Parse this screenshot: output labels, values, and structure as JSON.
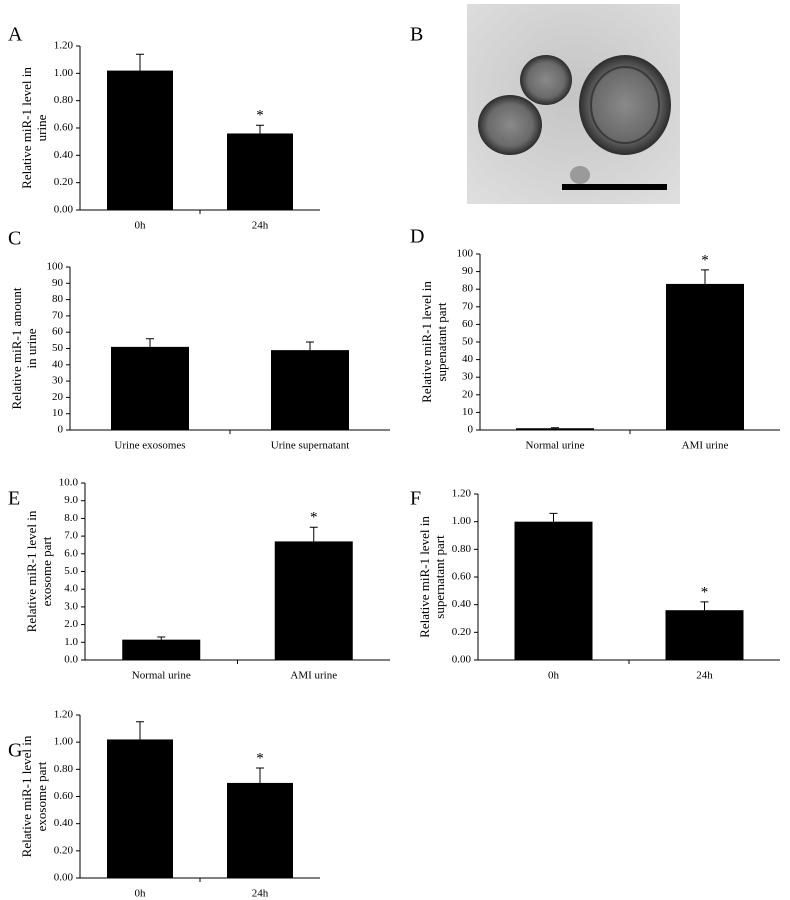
{
  "chart_data": [
    {
      "type": "bar",
      "panel": "A",
      "ylabel": [
        "Relative miR-1 level in",
        "urine"
      ],
      "categories": [
        "0h",
        "24h"
      ],
      "values": [
        1.02,
        0.56
      ],
      "errors": [
        0.12,
        0.06
      ],
      "color": "#000000",
      "annotations": [
        {
          "index": 1,
          "text": "*"
        }
      ],
      "ylim": [
        0,
        1.2
      ],
      "yticks": [
        {
          "value": 0,
          "label": "0.00"
        },
        {
          "value": 0.2,
          "label": "0.20"
        },
        {
          "value": 0.4,
          "label": "0.40"
        },
        {
          "value": 0.6,
          "label": "0.60"
        },
        {
          "value": 0.8,
          "label": "0.80"
        },
        {
          "value": 1,
          "label": "1.00"
        },
        {
          "value": 1.2,
          "label": "1.20"
        }
      ]
    },
    {
      "type": "bar",
      "panel": "C",
      "ylabel": [
        "Relative miR-1 amount",
        "in urine"
      ],
      "categories": [
        "Urine exosomes",
        "Urine supernatant"
      ],
      "values": [
        51,
        49
      ],
      "errors": [
        5,
        5
      ],
      "color": "#000000",
      "annotations": [],
      "ylim": [
        0,
        100
      ],
      "yticks": [
        0,
        10,
        20,
        30,
        40,
        50,
        60,
        70,
        80,
        90,
        100
      ]
    },
    {
      "type": "bar",
      "panel": "D",
      "ylabel": [
        "Relative miR-1 level in",
        "supenatant part"
      ],
      "categories": [
        "Normal urine",
        "AMI urine"
      ],
      "values": [
        1,
        83
      ],
      "errors": [
        0.3,
        8
      ],
      "color": "#000000",
      "annotations": [
        {
          "index": 1,
          "text": "*"
        }
      ],
      "ylim": [
        0,
        100
      ],
      "yticks": [
        0,
        10,
        20,
        30,
        40,
        50,
        60,
        70,
        80,
        90,
        100
      ]
    },
    {
      "type": "bar",
      "panel": "E",
      "ylabel": [
        "Relative miR-1 level in",
        "exosome part"
      ],
      "categories": [
        "Normal urine",
        "AMI urine"
      ],
      "values": [
        1.15,
        6.7
      ],
      "errors": [
        0.15,
        0.8
      ],
      "color": "#000000",
      "annotations": [
        {
          "index": 1,
          "text": "*"
        }
      ],
      "ylim": [
        0,
        10
      ],
      "yticks": [
        {
          "value": 0,
          "label": "0.0"
        },
        {
          "value": 1,
          "label": "1.0"
        },
        {
          "value": 2,
          "label": "2.0"
        },
        {
          "value": 3,
          "label": "3.0"
        },
        {
          "value": 4,
          "label": "4.0"
        },
        {
          "value": 5,
          "label": "5.0"
        },
        {
          "value": 6,
          "label": "6.0"
        },
        {
          "value": 7,
          "label": "7.0"
        },
        {
          "value": 8,
          "label": "8.0"
        },
        {
          "value": 9,
          "label": "9.0"
        },
        {
          "value": 10,
          "label": "10.0"
        }
      ]
    },
    {
      "type": "bar",
      "panel": "F",
      "ylabel": [
        "Relative miR-1 level in",
        "supernatant part"
      ],
      "categories": [
        "0h",
        "24h"
      ],
      "values": [
        1.0,
        0.36
      ],
      "errors": [
        0.06,
        0.06
      ],
      "color": "#000000",
      "annotations": [
        {
          "index": 1,
          "text": "*"
        }
      ],
      "ylim": [
        0,
        1.2
      ],
      "yticks": [
        {
          "value": 0,
          "label": "0.00"
        },
        {
          "value": 0.2,
          "label": "0.20"
        },
        {
          "value": 0.4,
          "label": "0.40"
        },
        {
          "value": 0.6,
          "label": "0.60"
        },
        {
          "value": 0.8,
          "label": "0.80"
        },
        {
          "value": 1,
          "label": "1.00"
        },
        {
          "value": 1.2,
          "label": "1.20"
        }
      ]
    },
    {
      "type": "bar",
      "panel": "G",
      "ylabel": [
        "Relative miR-1 level in",
        "exosome part"
      ],
      "categories": [
        "0h",
        "24h"
      ],
      "values": [
        1.02,
        0.7
      ],
      "errors": [
        0.13,
        0.11
      ],
      "color": "#000000",
      "annotations": [
        {
          "index": 1,
          "text": "*"
        }
      ],
      "ylim": [
        0,
        1.2
      ],
      "yticks": [
        {
          "value": 0,
          "label": "0.00"
        },
        {
          "value": 0.2,
          "label": "0.20"
        },
        {
          "value": 0.4,
          "label": "0.40"
        },
        {
          "value": 0.6,
          "label": "0.60"
        },
        {
          "value": 0.8,
          "label": "0.80"
        },
        {
          "value": 1,
          "label": "1.00"
        },
        {
          "value": 1.2,
          "label": "1.20"
        }
      ]
    }
  ],
  "image_panel": {
    "label": "B"
  }
}
